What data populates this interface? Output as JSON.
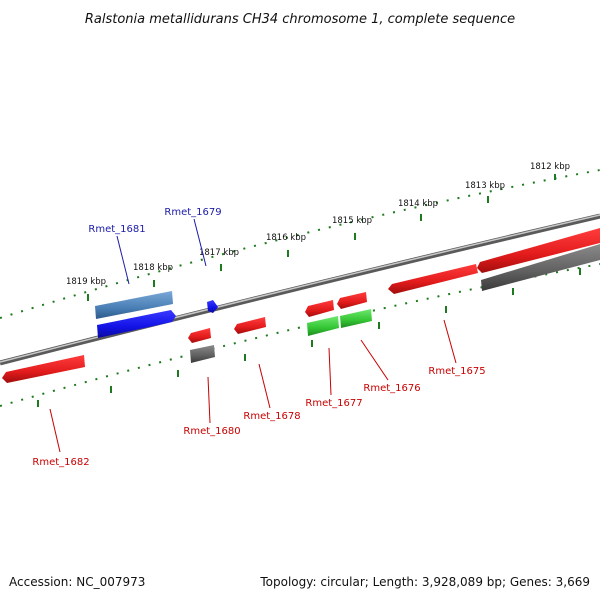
{
  "title": "Ralstonia metallidurans CH34 chromosome 1, complete sequence",
  "footer": {
    "accession": "Accession: NC_007973",
    "summary": "Topology: circular; Length: 3,928,089 bp; Genes: 3,669"
  },
  "colors": {
    "red": "#e21b1b",
    "dark_red": "#a10d0d",
    "blue": "#1212e6",
    "steel_blue": "#4a7fb5",
    "green": "#33c433",
    "gray": "#5f5f5f",
    "tick_green": "#1e7a1e",
    "backbone": "#8a8a8a",
    "label_red": "#c80000",
    "label_blue": "#1a1aaa"
  },
  "scale_labels": [
    "1812 kbp",
    "1813 kbp",
    "1814 kbp",
    "1815 kbp",
    "1816 kbp",
    "1817 kbp",
    "1818 kbp",
    "1819 kbp"
  ],
  "genes": {
    "rmet_1675": "Rmet_1675",
    "rmet_1676": "Rmet_1676",
    "rmet_1677": "Rmet_1677",
    "rmet_1678": "Rmet_1678",
    "rmet_1679": "Rmet_1679",
    "rmet_1680": "Rmet_1680",
    "rmet_1681": "Rmet_1681",
    "rmet_1682": "Rmet_1682"
  }
}
